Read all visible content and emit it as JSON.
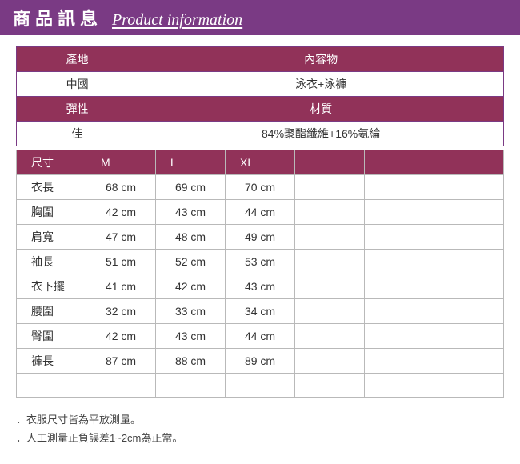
{
  "banner": {
    "title_zh": "商品訊息",
    "title_en": "Product information"
  },
  "info": {
    "headers": [
      "產地",
      "內容物"
    ],
    "values": [
      "中國",
      "泳衣+泳褲"
    ],
    "headers2": [
      "彈性",
      "材質"
    ],
    "values2": [
      "佳",
      "84%聚酯纖維+16%氨綸"
    ]
  },
  "size": {
    "corner": "尺寸",
    "size_cols": [
      "M",
      "L",
      "XL"
    ],
    "extra_cols": 3,
    "rows": [
      {
        "label": "衣長",
        "cells": [
          "68 cm",
          "69 cm",
          "70 cm"
        ]
      },
      {
        "label": "胸圍",
        "cells": [
          "42 cm",
          "43 cm",
          "44 cm"
        ]
      },
      {
        "label": "肩寬",
        "cells": [
          "47 cm",
          "48 cm",
          "49 cm"
        ]
      },
      {
        "label": "袖長",
        "cells": [
          "51 cm",
          "52 cm",
          "53 cm"
        ]
      },
      {
        "label": "衣下擺",
        "cells": [
          "41 cm",
          "42 cm",
          "43 cm"
        ]
      },
      {
        "label": "腰圍",
        "cells": [
          "32 cm",
          "33 cm",
          "34 cm"
        ]
      },
      {
        "label": "臀圍",
        "cells": [
          "42 cm",
          "43 cm",
          "44 cm"
        ]
      },
      {
        "label": "褲長",
        "cells": [
          "87 cm",
          "88 cm",
          "89 cm"
        ]
      }
    ],
    "empty_rows": 1
  },
  "notes": [
    "．衣服尺寸皆為平放測量。",
    "．人工測量正負誤差1~2cm為正常。"
  ]
}
